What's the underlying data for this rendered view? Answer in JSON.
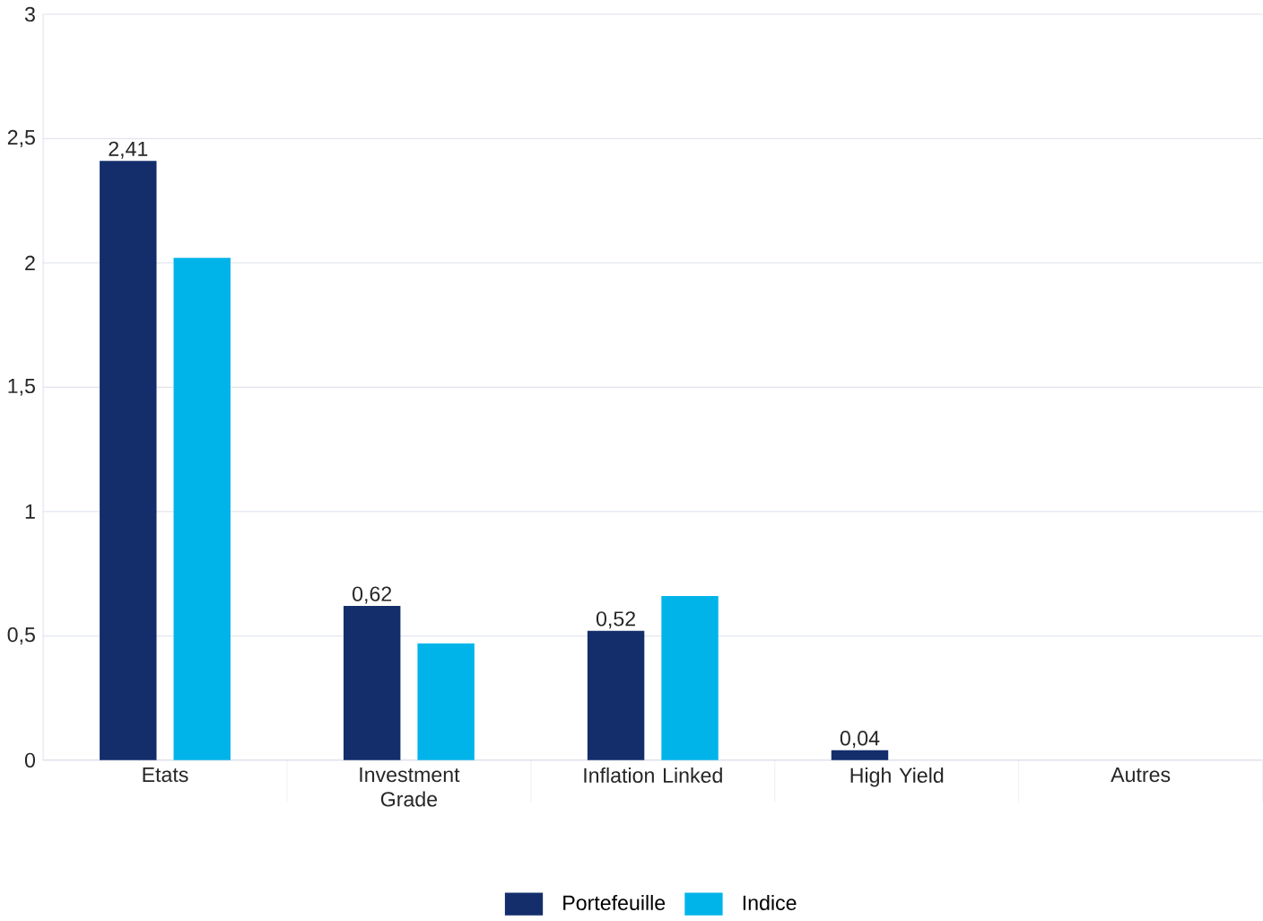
{
  "chart_data": {
    "type": "bar",
    "categories": [
      "Etats",
      "Investment Grade",
      "Inflation Linked",
      "High Yield",
      "Autres"
    ],
    "series": [
      {
        "name": "Portefeuille",
        "color": "#132e6b",
        "values": [
          2.41,
          0.62,
          0.52,
          0.04,
          null
        ],
        "value_labels": [
          "2,41",
          "0,62",
          "0,52",
          "0,04",
          null
        ]
      },
      {
        "name": "Indice",
        "color": "#00b4ea",
        "values": [
          2.02,
          0.47,
          0.66,
          null,
          null
        ]
      }
    ],
    "ylim": [
      0,
      3
    ],
    "yticks": [
      0,
      {
        "value": 0.5,
        "label": "0,5"
      },
      1,
      {
        "value": 1.5,
        "label": "1,5"
      },
      2,
      {
        "value": 2.5,
        "label": "2,5"
      },
      3
    ],
    "grid": "y",
    "legend": "bottom"
  }
}
